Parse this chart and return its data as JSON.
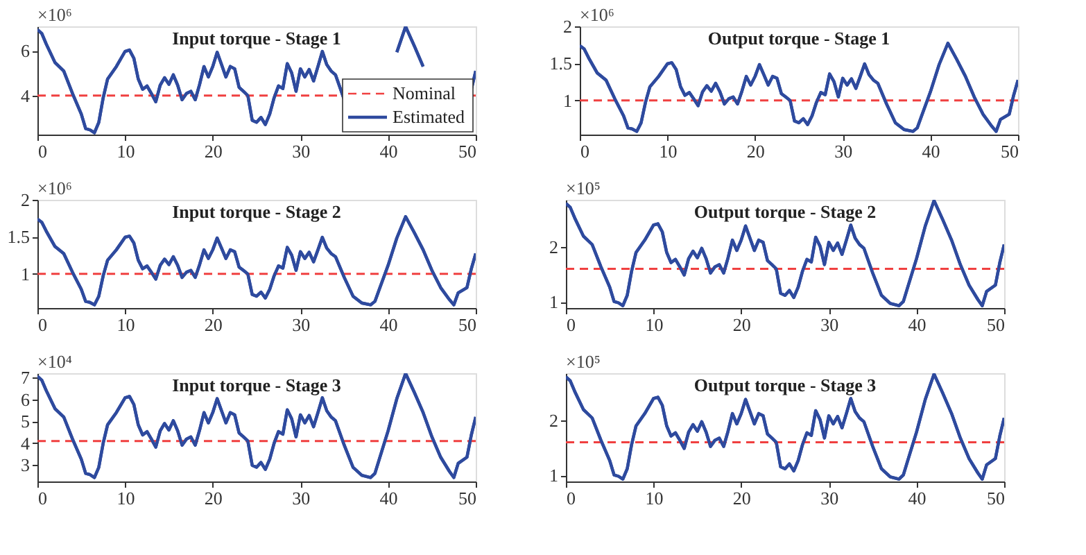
{
  "chart_data": [
    {
      "type": "line",
      "title": "Input torque - Stage 1",
      "annotations": [
        "×10⁶"
      ],
      "xlim": [
        0,
        50
      ],
      "xticks": [
        0,
        10,
        20,
        30,
        40,
        50
      ],
      "ylim": [
        2.25,
        7.1
      ],
      "yticks": [
        4,
        6
      ],
      "grid": false,
      "legend": "bottom right",
      "x": [
        0,
        0.5,
        1,
        2,
        3,
        4,
        5,
        5.5,
        6,
        6.5,
        7,
        7.5,
        8,
        9,
        10,
        10.5,
        11,
        11.5,
        12,
        12.5,
        13,
        13.5,
        14,
        14.5,
        15,
        15.5,
        16,
        16.5,
        17,
        17.5,
        18,
        18.5,
        19,
        19.5,
        20,
        20.5,
        21,
        21.5,
        22,
        22.5,
        23,
        23.5,
        24,
        24.5,
        25,
        25.5,
        26,
        26.5,
        27,
        27.5,
        28,
        28.5,
        29,
        29.5,
        30,
        30.5,
        31,
        31.5,
        32,
        32.5,
        33,
        33.5,
        34,
        35,
        36,
        37,
        38,
        38.5,
        39,
        40,
        41,
        42,
        43,
        44,
        45,
        46,
        47,
        47.5,
        48,
        49,
        49.5,
        50
      ],
      "ref_lines": [
        {
          "axis": "y",
          "value": 4,
          "label": "Nominal",
          "color": "#f04040",
          "line_style": "dashed"
        }
      ],
      "series": [
        {
          "name": "Estimated",
          "color": "#2e4a9e",
          "line_style": "solid",
          "values": [
            6.96,
            6.78,
            6.31,
            5.48,
            5.1,
            4.09,
            3.17,
            2.52,
            2.46,
            2.33,
            2.8,
            3.9,
            4.74,
            5.3,
            5.98,
            6.04,
            5.67,
            4.74,
            4.28,
            4.43,
            4.09,
            3.72,
            4.46,
            4.8,
            4.5,
            4.93,
            4.46,
            3.81,
            4.09,
            4.19,
            3.81,
            4.5,
            5.3,
            4.83,
            5.3,
            5.94,
            5.39,
            4.83,
            5.3,
            5.2,
            4.37,
            4.19,
            4,
            2.89,
            2.8,
            3.02,
            2.7,
            3.17,
            3.9,
            4.43,
            4.31,
            5.43,
            5.02,
            4.19,
            5.2,
            4.83,
            5.17,
            4.65,
            5.3,
            5.98,
            5.39,
            5.1,
            4.93,
            3.81,
            null,
            null,
            null,
            null,
            null,
            null,
            5.94,
            7.09,
            6.22,
            5.3,
            null,
            null,
            null,
            null,
            null,
            null,
            4.28,
            5.1
          ]
        }
      ]
    },
    {
      "type": "line",
      "title": "Output torque - Stage 1",
      "annotations": [
        "×10⁶"
      ],
      "xlim": [
        0,
        50
      ],
      "xticks": [
        0,
        10,
        20,
        30,
        40,
        50
      ],
      "ylim": [
        0.54,
        2
      ],
      "yticks": [
        1,
        1.5,
        2
      ],
      "grid": false,
      "x": [
        0,
        0.5,
        1,
        2,
        3,
        4,
        5,
        5.5,
        6,
        6.5,
        7,
        7.5,
        8,
        9,
        10,
        10.5,
        11,
        11.5,
        12,
        12.5,
        13,
        13.5,
        14,
        14.5,
        15,
        15.5,
        16,
        16.5,
        17,
        17.5,
        18,
        18.5,
        19,
        19.5,
        20,
        20.5,
        21,
        21.5,
        22,
        22.5,
        23,
        23.5,
        24,
        24.5,
        25,
        25.5,
        26,
        26.5,
        27,
        27.5,
        28,
        28.5,
        29,
        29.5,
        30,
        30.5,
        31,
        31.5,
        32,
        32.5,
        33,
        33.5,
        34,
        35,
        36,
        37,
        38,
        38.5,
        39,
        40,
        41,
        42,
        43,
        44,
        45,
        46,
        47,
        47.5,
        48,
        49,
        49.5,
        50
      ],
      "ref_lines": [
        {
          "axis": "y",
          "value": 1,
          "color": "#f04040",
          "line_style": "dashed"
        }
      ],
      "series": [
        {
          "color": "#2e4a9e",
          "line_style": "solid",
          "values": [
            1.74,
            1.695,
            1.578,
            1.37,
            1.275,
            1.023,
            0.793,
            0.63,
            0.615,
            0.583,
            0.7,
            0.975,
            1.185,
            1.325,
            1.495,
            1.51,
            1.418,
            1.185,
            1.07,
            1.108,
            1.023,
            0.93,
            1.115,
            1.2,
            1.125,
            1.233,
            1.115,
            0.953,
            1.023,
            1.048,
            0.953,
            1.125,
            1.325,
            1.208,
            1.325,
            1.485,
            1.348,
            1.208,
            1.325,
            1.3,
            1.093,
            1.048,
            1,
            0.723,
            0.7,
            0.755,
            0.675,
            0.793,
            0.975,
            1.108,
            1.078,
            1.358,
            1.255,
            1.048,
            1.3,
            1.208,
            1.293,
            1.163,
            1.325,
            1.495,
            1.348,
            1.275,
            1.233,
            0.953,
            0.7,
            0.608,
            0.583,
            0.63,
            0.793,
            1.115,
            1.485,
            1.773,
            1.555,
            1.325,
            1.048,
            0.815,
            0.653,
            0.583,
            0.745,
            0.815,
            1.07,
            1.275
          ]
        }
      ]
    },
    {
      "type": "line",
      "title": "Input torque - Stage 2",
      "annotations": [
        "×10⁶"
      ],
      "xlim": [
        0,
        50
      ],
      "xticks": [
        0,
        10,
        20,
        30,
        40,
        50
      ],
      "ylim": [
        0.54,
        2
      ],
      "yticks": [
        1,
        1.5,
        2
      ],
      "grid": false,
      "x": [
        0,
        0.5,
        1,
        2,
        3,
        4,
        5,
        5.5,
        6,
        6.5,
        7,
        7.5,
        8,
        9,
        10,
        10.5,
        11,
        11.5,
        12,
        12.5,
        13,
        13.5,
        14,
        14.5,
        15,
        15.5,
        16,
        16.5,
        17,
        17.5,
        18,
        18.5,
        19,
        19.5,
        20,
        20.5,
        21,
        21.5,
        22,
        22.5,
        23,
        23.5,
        24,
        24.5,
        25,
        25.5,
        26,
        26.5,
        27,
        27.5,
        28,
        28.5,
        29,
        29.5,
        30,
        30.5,
        31,
        31.5,
        32,
        32.5,
        33,
        33.5,
        34,
        35,
        36,
        37,
        38,
        38.5,
        39,
        40,
        41,
        42,
        43,
        44,
        45,
        46,
        47,
        47.5,
        48,
        49,
        49.5,
        50
      ],
      "ref_lines": [
        {
          "axis": "y",
          "value": 1,
          "color": "#f04040",
          "line_style": "dashed"
        }
      ],
      "series": [
        {
          "color": "#2e4a9e",
          "line_style": "solid",
          "values": [
            1.74,
            1.695,
            1.578,
            1.37,
            1.275,
            1.023,
            0.793,
            0.63,
            0.615,
            0.583,
            0.7,
            0.975,
            1.185,
            1.325,
            1.495,
            1.51,
            1.418,
            1.185,
            1.07,
            1.108,
            1.023,
            0.93,
            1.115,
            1.2,
            1.125,
            1.233,
            1.115,
            0.953,
            1.023,
            1.048,
            0.953,
            1.125,
            1.325,
            1.208,
            1.325,
            1.485,
            1.348,
            1.208,
            1.325,
            1.3,
            1.093,
            1.048,
            1,
            0.723,
            0.7,
            0.755,
            0.675,
            0.793,
            0.975,
            1.108,
            1.078,
            1.358,
            1.255,
            1.048,
            1.3,
            1.208,
            1.293,
            1.163,
            1.325,
            1.495,
            1.348,
            1.275,
            1.233,
            0.953,
            0.7,
            0.608,
            0.583,
            0.63,
            0.793,
            1.115,
            1.485,
            1.773,
            1.555,
            1.325,
            1.048,
            0.815,
            0.653,
            0.583,
            0.745,
            0.815,
            1.07,
            1.275
          ]
        }
      ]
    },
    {
      "type": "line",
      "title": "Output torque - Stage 2",
      "annotations": [
        "×10⁵"
      ],
      "xlim": [
        0,
        50
      ],
      "xticks": [
        0,
        10,
        20,
        30,
        40,
        50
      ],
      "ylim": [
        0.89,
        2.85
      ],
      "yticks": [
        1,
        2
      ],
      "grid": false,
      "x": [
        0,
        0.5,
        1,
        2,
        3,
        4,
        5,
        5.5,
        6,
        6.5,
        7,
        7.5,
        8,
        9,
        10,
        10.5,
        11,
        11.5,
        12,
        12.5,
        13,
        13.5,
        14,
        14.5,
        15,
        15.5,
        16,
        16.5,
        17,
        17.5,
        18,
        18.5,
        19,
        19.5,
        20,
        20.5,
        21,
        21.5,
        22,
        22.5,
        23,
        23.5,
        24,
        24.5,
        25,
        25.5,
        26,
        26.5,
        27,
        27.5,
        28,
        28.5,
        29,
        29.5,
        30,
        30.5,
        31,
        31.5,
        32,
        32.5,
        33,
        33.5,
        34,
        35,
        36,
        37,
        38,
        38.5,
        39,
        40,
        41,
        42,
        43,
        44,
        45,
        46,
        47,
        47.5,
        48,
        49,
        49.5,
        50
      ],
      "ref_lines": [
        {
          "axis": "y",
          "value": 1.6,
          "color": "#f04040",
          "line_style": "dashed"
        }
      ],
      "series": [
        {
          "color": "#2e4a9e",
          "line_style": "solid",
          "values": [
            2.784,
            2.712,
            2.524,
            2.192,
            2.04,
            1.636,
            1.268,
            1.008,
            0.984,
            0.932,
            1.12,
            1.56,
            1.896,
            2.12,
            2.392,
            2.416,
            2.268,
            1.896,
            1.712,
            1.772,
            1.636,
            1.488,
            1.784,
            1.92,
            1.8,
            1.972,
            1.784,
            1.524,
            1.636,
            1.676,
            1.524,
            1.8,
            2.12,
            1.932,
            2.12,
            2.376,
            2.156,
            1.932,
            2.12,
            2.08,
            1.748,
            1.676,
            1.6,
            1.156,
            1.12,
            1.208,
            1.08,
            1.268,
            1.56,
            1.772,
            1.724,
            2.172,
            2.008,
            1.676,
            2.08,
            1.932,
            2.068,
            1.86,
            2.12,
            2.392,
            2.156,
            2.04,
            1.972,
            1.524,
            1.12,
            0.972,
            0.932,
            1.008,
            1.268,
            1.784,
            2.376,
            2.836,
            2.488,
            2.12,
            1.676,
            1.304,
            1.044,
            0.932,
            1.192,
            1.304,
            1.712,
            2.04
          ]
        }
      ]
    },
    {
      "type": "line",
      "title": "Input torque - Stage 3",
      "annotations": [
        "×10⁴"
      ],
      "xlim": [
        0,
        50
      ],
      "xticks": [
        0,
        10,
        20,
        30,
        40,
        50
      ],
      "ylim": [
        2.25,
        7.2
      ],
      "yticks": [
        3,
        4,
        5,
        6,
        7
      ],
      "grid": false,
      "x": [
        0,
        0.5,
        1,
        2,
        3,
        4,
        5,
        5.5,
        6,
        6.5,
        7,
        7.5,
        8,
        9,
        10,
        10.5,
        11,
        11.5,
        12,
        12.5,
        13,
        13.5,
        14,
        14.5,
        15,
        15.5,
        16,
        16.5,
        17,
        17.5,
        18,
        18.5,
        19,
        19.5,
        20,
        20.5,
        21,
        21.5,
        22,
        22.5,
        23,
        23.5,
        24,
        24.5,
        25,
        25.5,
        26,
        26.5,
        27,
        27.5,
        28,
        28.5,
        29,
        29.5,
        30,
        30.5,
        31,
        31.5,
        32,
        32.5,
        33,
        33.5,
        34,
        35,
        36,
        37,
        38,
        38.5,
        39,
        40,
        41,
        42,
        43,
        44,
        45,
        46,
        47,
        47.5,
        48,
        49,
        49.5,
        50
      ],
      "ref_lines": [
        {
          "axis": "y",
          "value": 4.1,
          "color": "#f04040",
          "line_style": "dashed"
        }
      ],
      "series": [
        {
          "color": "#2e4a9e",
          "line_style": "solid",
          "values": [
            7.06,
            6.88,
            6.41,
            5.58,
            5.2,
            4.19,
            3.27,
            2.62,
            2.56,
            2.43,
            2.9,
            4,
            4.84,
            5.4,
            6.08,
            6.14,
            5.77,
            4.84,
            4.38,
            4.53,
            4.19,
            3.82,
            4.56,
            4.9,
            4.6,
            5.03,
            4.56,
            3.91,
            4.19,
            4.29,
            3.91,
            4.6,
            5.4,
            4.93,
            5.4,
            6.04,
            5.49,
            4.93,
            5.4,
            5.3,
            4.47,
            4.29,
            4.1,
            2.99,
            2.9,
            3.12,
            2.8,
            3.27,
            4,
            4.53,
            4.41,
            5.53,
            5.12,
            4.29,
            5.3,
            4.93,
            5.27,
            4.75,
            5.4,
            6.08,
            5.49,
            5.2,
            5.03,
            3.91,
            2.9,
            2.53,
            2.43,
            2.62,
            3.27,
            4.56,
            6.04,
            7.19,
            6.32,
            5.4,
            4.29,
            3.36,
            2.71,
            2.43,
            3.08,
            3.36,
            4.38,
            5.2
          ]
        }
      ]
    },
    {
      "type": "line",
      "title": "Output torque - Stage 3",
      "annotations": [
        "×10⁵"
      ],
      "xlim": [
        0,
        50
      ],
      "xticks": [
        0,
        10,
        20,
        30,
        40,
        50
      ],
      "ylim": [
        0.89,
        2.85
      ],
      "yticks": [
        1,
        2
      ],
      "grid": false,
      "x": [
        0,
        0.5,
        1,
        2,
        3,
        4,
        5,
        5.5,
        6,
        6.5,
        7,
        7.5,
        8,
        9,
        10,
        10.5,
        11,
        11.5,
        12,
        12.5,
        13,
        13.5,
        14,
        14.5,
        15,
        15.5,
        16,
        16.5,
        17,
        17.5,
        18,
        18.5,
        19,
        19.5,
        20,
        20.5,
        21,
        21.5,
        22,
        22.5,
        23,
        23.5,
        24,
        24.5,
        25,
        25.5,
        26,
        26.5,
        27,
        27.5,
        28,
        28.5,
        29,
        29.5,
        30,
        30.5,
        31,
        31.5,
        32,
        32.5,
        33,
        33.5,
        34,
        35,
        36,
        37,
        38,
        38.5,
        39,
        40,
        41,
        42,
        43,
        44,
        45,
        46,
        47,
        47.5,
        48,
        49,
        49.5,
        50
      ],
      "ref_lines": [
        {
          "axis": "y",
          "value": 1.6,
          "color": "#f04040",
          "line_style": "dashed"
        }
      ],
      "series": [
        {
          "color": "#2e4a9e",
          "line_style": "solid",
          "values": [
            2.784,
            2.712,
            2.524,
            2.192,
            2.04,
            1.636,
            1.268,
            1.008,
            0.984,
            0.932,
            1.12,
            1.56,
            1.896,
            2.12,
            2.392,
            2.416,
            2.268,
            1.896,
            1.712,
            1.772,
            1.636,
            1.488,
            1.784,
            1.92,
            1.8,
            1.972,
            1.784,
            1.524,
            1.636,
            1.676,
            1.524,
            1.8,
            2.12,
            1.932,
            2.12,
            2.376,
            2.156,
            1.932,
            2.12,
            2.08,
            1.748,
            1.676,
            1.6,
            1.156,
            1.12,
            1.208,
            1.08,
            1.268,
            1.56,
            1.772,
            1.724,
            2.172,
            2.008,
            1.676,
            2.08,
            1.932,
            2.068,
            1.86,
            2.12,
            2.392,
            2.156,
            2.04,
            1.972,
            1.524,
            1.12,
            0.972,
            0.932,
            1.008,
            1.268,
            1.784,
            2.376,
            2.836,
            2.488,
            2.12,
            1.676,
            1.304,
            1.044,
            0.932,
            1.192,
            1.304,
            1.712,
            2.04
          ]
        }
      ]
    }
  ]
}
